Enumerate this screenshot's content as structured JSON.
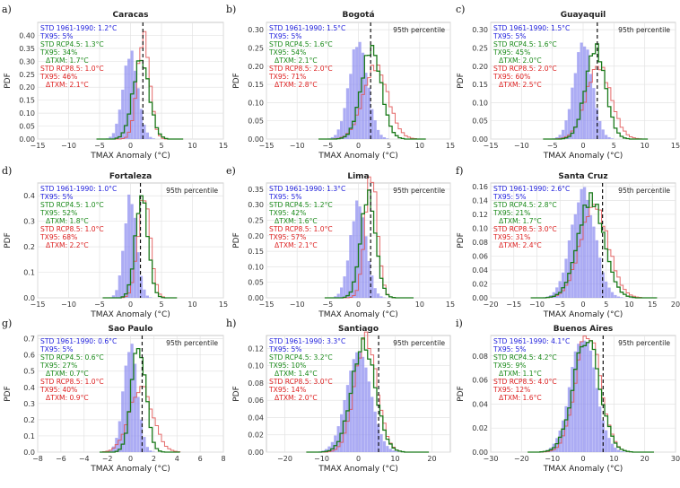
{
  "figure": {
    "x_axis_label": "TMAX Anomaly (°C)",
    "y_axis_label": "PDF",
    "percentile_label": "95th percentile"
  },
  "colors": {
    "historical": "#8c8cf0",
    "rcp45": "#1a7a1a",
    "rcp85": "#e05050",
    "text_std": "#2222dd",
    "text_rcp45": "#1a8a1a",
    "text_rcp85": "#dd2222"
  },
  "chart_data": [
    {
      "panel": "a)",
      "type": "bar",
      "title": "Caracas",
      "xlim": [
        -15,
        15
      ],
      "xticks": [
        -15,
        -10,
        -5,
        0,
        5,
        10,
        15
      ],
      "ylim": [
        0,
        0.45
      ],
      "yticks": [
        "0.00",
        "0.05",
        "0.10",
        "0.15",
        "0.20",
        "0.25",
        "0.30",
        "0.35",
        "0.40"
      ],
      "p95": 2.0,
      "mean_hist": 0.0,
      "sd_hist": 1.2,
      "shift45": 1.7,
      "sd45": 1.3,
      "shift85": 2.1,
      "sd85": 1.0,
      "show_p95_label": false,
      "annotations": {
        "std_hist": "STD 1961-1990: 1.2°C",
        "tx95_hist": "TX95: 5%",
        "std_rcp45": "STD RCP4.5: 1.3°C",
        "tx95_rcp45": "TX95: 34%",
        "dtxm_rcp45": "ΔTXM: 1.7°C",
        "std_rcp85": "STD RCP8.5: 1.0°C",
        "tx95_rcp85": "TX95: 46%",
        "dtxm_rcp85": "ΔTXM: 2.1°C"
      }
    },
    {
      "panel": "b)",
      "type": "bar",
      "title": "Bogotá",
      "xlim": [
        -15,
        15
      ],
      "xticks": [
        -15,
        -10,
        -5,
        0,
        5,
        10,
        15
      ],
      "ylim": [
        0,
        0.32
      ],
      "yticks": [
        "0.00",
        "0.05",
        "0.10",
        "0.15",
        "0.20",
        "0.25",
        "0.30"
      ],
      "p95": 2.0,
      "mean_hist": 0.0,
      "sd_hist": 1.5,
      "shift45": 2.1,
      "sd45": 1.6,
      "shift85": 2.8,
      "sd85": 2.0,
      "show_p95_label": true,
      "annotations": {
        "std_hist": "STD 1961-1990: 1.5°C",
        "tx95_hist": "TX95: 5%",
        "std_rcp45": "STD RCP4.5: 1.6°C",
        "tx95_rcp45": "TX95: 54%",
        "dtxm_rcp45": "ΔTXM: 2.1°C",
        "std_rcp85": "STD RCP8.5: 2.0°C",
        "tx95_rcp85": "TX95: 71%",
        "dtxm_rcp85": "ΔTXM: 2.8°C"
      }
    },
    {
      "panel": "c)",
      "type": "bar",
      "title": "Guayaquil",
      "xlim": [
        -15,
        15
      ],
      "xticks": [
        -15,
        -10,
        -5,
        0,
        5,
        10,
        15
      ],
      "ylim": [
        0,
        0.32
      ],
      "yticks": [
        "0.00",
        "0.05",
        "0.10",
        "0.15",
        "0.20",
        "0.25",
        "0.30"
      ],
      "p95": 2.3,
      "mean_hist": 0.0,
      "sd_hist": 1.5,
      "shift45": 2.0,
      "sd45": 1.6,
      "shift85": 2.5,
      "sd85": 2.0,
      "show_p95_label": true,
      "annotations": {
        "std_hist": "STD 1961-1990: 1.5°C",
        "tx95_hist": "TX95: 5%",
        "std_rcp45": "STD RCP4.5: 1.6°C",
        "tx95_rcp45": "TX95: 45%",
        "dtxm_rcp45": "ΔTXM: 2.0°C",
        "std_rcp85": "STD RCP8.5: 2.0°C",
        "tx95_rcp85": "TX95: 60%",
        "dtxm_rcp85": "ΔTXM: 2.5°C"
      }
    },
    {
      "panel": "d)",
      "type": "bar",
      "title": "Fortaleza",
      "xlim": [
        -15,
        15
      ],
      "xticks": [
        -15,
        -10,
        -5,
        0,
        5,
        10,
        15
      ],
      "ylim": [
        0,
        0.45
      ],
      "yticks": [
        "0.0",
        "0.1",
        "0.2",
        "0.3",
        "0.4"
      ],
      "p95": 1.6,
      "mean_hist": 0.0,
      "sd_hist": 1.0,
      "shift45": 1.8,
      "sd45": 1.0,
      "shift85": 2.2,
      "sd85": 1.0,
      "show_p95_label": true,
      "annotations": {
        "std_hist": "STD 1961-1990: 1.0°C",
        "tx95_hist": "TX95: 5%",
        "std_rcp45": "STD RCP4.5: 1.0°C",
        "tx95_rcp45": "TX95: 52%",
        "dtxm_rcp45": "ΔTXM: 1.8°C",
        "std_rcp85": "STD RCP8.5: 1.0°C",
        "tx95_rcp85": "TX95: 68%",
        "dtxm_rcp85": "ΔTXM: 2.2°C"
      }
    },
    {
      "panel": "e)",
      "type": "bar",
      "title": "Lima",
      "xlim": [
        -15,
        15
      ],
      "xticks": [
        -15,
        -10,
        -5,
        0,
        5,
        10,
        15
      ],
      "ylim": [
        0,
        0.37
      ],
      "yticks": [
        "0.00",
        "0.05",
        "0.10",
        "0.15",
        "0.20",
        "0.25",
        "0.30",
        "0.35"
      ],
      "p95": 2.0,
      "mean_hist": 0.0,
      "sd_hist": 1.3,
      "shift45": 1.6,
      "sd45": 1.2,
      "shift85": 2.1,
      "sd85": 1.0,
      "show_p95_label": true,
      "annotations": {
        "std_hist": "STD 1961-1990: 1.3°C",
        "tx95_hist": "TX95: 5%",
        "std_rcp45": "STD RCP4.5: 1.2°C",
        "tx95_rcp45": "TX95: 42%",
        "dtxm_rcp45": "ΔTXM: 1.6°C",
        "std_rcp85": "STD RCP8.5: 1.0°C",
        "tx95_rcp85": "TX95: 57%",
        "dtxm_rcp85": "ΔTXM: 2.1°C"
      }
    },
    {
      "panel": "f)",
      "type": "bar",
      "title": "Santa Cruz",
      "xlim": [
        -20,
        20
      ],
      "xticks": [
        -20,
        -15,
        -10,
        -5,
        0,
        5,
        10,
        15,
        20
      ],
      "ylim": [
        0,
        0.165
      ],
      "yticks": [
        "0.00",
        "0.02",
        "0.04",
        "0.06",
        "0.08",
        "0.10",
        "0.12",
        "0.14",
        "0.16"
      ],
      "p95": 4.2,
      "mean_hist": 0.0,
      "sd_hist": 2.6,
      "shift45": 1.7,
      "sd45": 2.8,
      "shift85": 2.4,
      "sd85": 3.0,
      "show_p95_label": true,
      "annotations": {
        "std_hist": "STD 1961-1990: 2.6°C",
        "tx95_hist": "TX95: 5%",
        "std_rcp45": "STD RCP4.5: 2.8°C",
        "tx95_rcp45": "TX95: 21%",
        "dtxm_rcp45": "ΔTXM: 1.7°C",
        "std_rcp85": "STD RCP8.5: 3.0°C",
        "tx95_rcp85": "TX95: 31%",
        "dtxm_rcp85": "ΔTXM: 2.4°C"
      }
    },
    {
      "panel": "g)",
      "type": "bar",
      "title": "Sao Paulo",
      "xlim": [
        -8,
        8
      ],
      "xticks": [
        -8,
        -6,
        -4,
        -2,
        0,
        2,
        4,
        6,
        8
      ],
      "ylim": [
        0,
        0.72
      ],
      "yticks": [
        "0.0",
        "0.1",
        "0.2",
        "0.3",
        "0.4",
        "0.5",
        "0.6",
        "0.7"
      ],
      "p95": 1.0,
      "mean_hist": 0.0,
      "sd_hist": 0.6,
      "shift45": 0.7,
      "sd45": 0.6,
      "shift85": 0.9,
      "sd85": 1.0,
      "show_p95_label": true,
      "annotations": {
        "std_hist": "STD 1961-1990: 0.6°C",
        "tx95_hist": "TX95: 5%",
        "std_rcp45": "STD RCP4.5: 0.6°C",
        "tx95_rcp45": "TX95: 27%",
        "dtxm_rcp45": "ΔTXM: 0.7°C",
        "std_rcp85": "STD RCP8.5: 1.0°C",
        "tx95_rcp85": "TX95: 40%",
        "dtxm_rcp85": "ΔTXM: 0.9°C"
      }
    },
    {
      "panel": "h)",
      "type": "bar",
      "title": "Santiago",
      "xlim": [
        -25,
        25
      ],
      "xticks": [
        -20,
        -10,
        0,
        10,
        20
      ],
      "ylim": [
        0,
        0.135
      ],
      "yticks": [
        "0.00",
        "0.02",
        "0.04",
        "0.06",
        "0.08",
        "0.10",
        "0.12"
      ],
      "p95": 5.5,
      "mean_hist": 0.0,
      "sd_hist": 3.3,
      "shift45": 1.4,
      "sd45": 3.2,
      "shift85": 2.0,
      "sd85": 3.0,
      "show_p95_label": true,
      "annotations": {
        "std_hist": "STD 1961-1990: 3.3°C",
        "tx95_hist": "TX95: 5%",
        "std_rcp45": "STD RCP4.5: 3.2°C",
        "tx95_rcp45": "TX95: 10%",
        "dtxm_rcp45": "ΔTXM: 1.4°C",
        "std_rcp85": "STD RCP8.5: 3.0°C",
        "tx95_rcp85": "TX95: 14%",
        "dtxm_rcp85": "ΔTXM: 2.0°C"
      }
    },
    {
      "panel": "i)",
      "type": "bar",
      "title": "Buenos Aires",
      "xlim": [
        -30,
        30
      ],
      "xticks": [
        -30,
        -20,
        -10,
        0,
        10,
        20,
        30
      ],
      "ylim": [
        0,
        0.097
      ],
      "yticks": [
        "0.00",
        "0.02",
        "0.04",
        "0.06",
        "0.08"
      ],
      "p95": 6.5,
      "mean_hist": 0.0,
      "sd_hist": 4.1,
      "shift45": 1.1,
      "sd45": 4.2,
      "shift85": 1.6,
      "sd85": 4.0,
      "show_p95_label": true,
      "annotations": {
        "std_hist": "STD 1961-1990: 4.1°C",
        "tx95_hist": "TX95: 5%",
        "std_rcp45": "STD RCP4.5: 4.2°C",
        "tx95_rcp45": "TX95: 9%",
        "dtxm_rcp45": "ΔTXM: 1.1°C",
        "std_rcp85": "STD RCP8.5: 4.0°C",
        "tx95_rcp85": "TX95: 12%",
        "dtxm_rcp85": "ΔTXM: 1.6°C"
      }
    }
  ]
}
